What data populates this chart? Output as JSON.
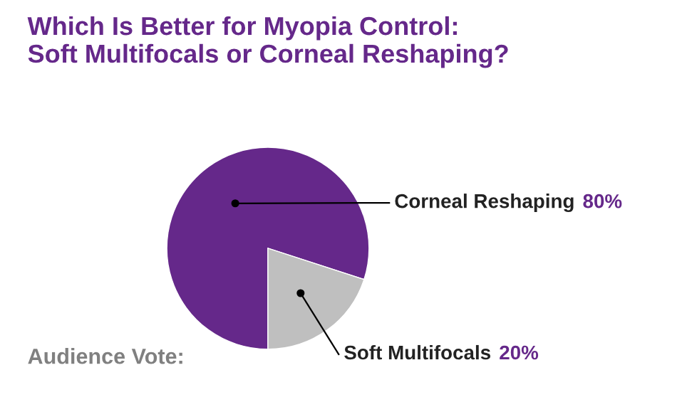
{
  "chart_data": {
    "type": "pie",
    "title": "Which Is Better for Myopia Control:\nSoft Multifocals or Corneal Reshaping?",
    "categories": [
      "Corneal Reshaping",
      "Soft Multifocals"
    ],
    "values": [
      80,
      20
    ],
    "colors": [
      "#65288a",
      "#bfbfbf"
    ],
    "value_labels": [
      "80%",
      "20%"
    ],
    "annotations": [
      "Audience Vote:"
    ]
  }
}
